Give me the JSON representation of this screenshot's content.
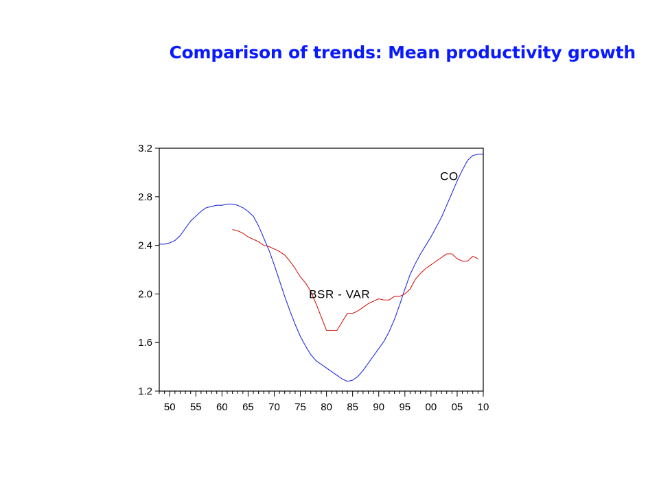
{
  "slide": {
    "title": "Comparison of trends: Mean productivity growth"
  },
  "colors": {
    "title": "#0a1aff",
    "co_series": "#1f2de0",
    "bsr_var_series": "#d11b10",
    "axes": "#000000"
  },
  "chart_data": {
    "type": "line",
    "title": "",
    "xlabel": "",
    "ylabel": "",
    "xlim": [
      1948,
      2010
    ],
    "ylim": [
      1.2,
      3.2
    ],
    "x_ticks": [
      1950,
      1955,
      1960,
      1965,
      1970,
      1975,
      1980,
      1985,
      1990,
      1995,
      2000,
      2005,
      2010
    ],
    "x_tick_labels": [
      "50",
      "55",
      "60",
      "65",
      "70",
      "75",
      "80",
      "85",
      "90",
      "95",
      "00",
      "05",
      "10"
    ],
    "y_ticks": [
      1.2,
      1.6,
      2.0,
      2.4,
      2.8,
      3.2
    ],
    "y_tick_labels": [
      "1.2",
      "1.6",
      "2.0",
      "2.4",
      "2.8",
      "3.2"
    ],
    "grid": false,
    "series": [
      {
        "name": "CO",
        "color": "#1f2de0",
        "x": [
          1948,
          1949,
          1950,
          1951,
          1952,
          1953,
          1954,
          1955,
          1956,
          1957,
          1958,
          1959,
          1960,
          1961,
          1962,
          1963,
          1964,
          1965,
          1966,
          1967,
          1968,
          1969,
          1970,
          1971,
          1972,
          1973,
          1974,
          1975,
          1976,
          1977,
          1978,
          1979,
          1980,
          1981,
          1982,
          1983,
          1984,
          1985,
          1986,
          1987,
          1988,
          1989,
          1990,
          1991,
          1992,
          1993,
          1994,
          1995,
          1996,
          1997,
          1998,
          1999,
          2000,
          2001,
          2002,
          2003,
          2004,
          2005,
          2006,
          2007,
          2008,
          2009,
          2010
        ],
        "values": [
          2.41,
          2.41,
          2.42,
          2.44,
          2.48,
          2.54,
          2.6,
          2.64,
          2.68,
          2.71,
          2.72,
          2.73,
          2.73,
          2.74,
          2.74,
          2.73,
          2.71,
          2.68,
          2.64,
          2.56,
          2.46,
          2.36,
          2.24,
          2.11,
          1.98,
          1.86,
          1.75,
          1.65,
          1.57,
          1.5,
          1.45,
          1.42,
          1.39,
          1.36,
          1.33,
          1.3,
          1.28,
          1.29,
          1.32,
          1.37,
          1.43,
          1.49,
          1.55,
          1.61,
          1.69,
          1.79,
          1.91,
          2.04,
          2.16,
          2.25,
          2.33,
          2.4,
          2.47,
          2.55,
          2.63,
          2.73,
          2.83,
          2.93,
          3.02,
          3.1,
          3.14,
          3.15,
          3.15
        ]
      },
      {
        "name": "BSR - VAR",
        "color": "#d11b10",
        "x": [
          1962,
          1963,
          1964,
          1965,
          1966,
          1967,
          1968,
          1969,
          1970,
          1971,
          1972,
          1973,
          1974,
          1975,
          1976,
          1977,
          1978,
          1979,
          1980,
          1981,
          1982,
          1983,
          1984,
          1985,
          1986,
          1987,
          1988,
          1989,
          1990,
          1991,
          1992,
          1993,
          1994,
          1995,
          1996,
          1997,
          1998,
          1999,
          2000,
          2001,
          2002,
          2003,
          2004,
          2005,
          2006,
          2007,
          2008,
          2009
        ],
        "values": [
          2.53,
          2.52,
          2.5,
          2.47,
          2.45,
          2.43,
          2.4,
          2.39,
          2.37,
          2.35,
          2.32,
          2.27,
          2.21,
          2.14,
          2.09,
          2.02,
          1.92,
          1.81,
          1.7,
          1.7,
          1.7,
          1.77,
          1.84,
          1.84,
          1.86,
          1.89,
          1.92,
          1.94,
          1.96,
          1.95,
          1.95,
          1.98,
          1.98,
          2.0,
          2.04,
          2.12,
          2.17,
          2.21,
          2.24,
          2.27,
          2.3,
          2.33,
          2.33,
          2.29,
          2.27,
          2.27,
          2.31,
          2.29
        ]
      }
    ],
    "annotations": [
      {
        "text": "CO",
        "series": "CO",
        "x": 2003.5,
        "y": 2.97
      },
      {
        "text": "BSR - VAR",
        "series": "BSR - VAR",
        "x": 1982.5,
        "y": 2.0
      }
    ]
  }
}
